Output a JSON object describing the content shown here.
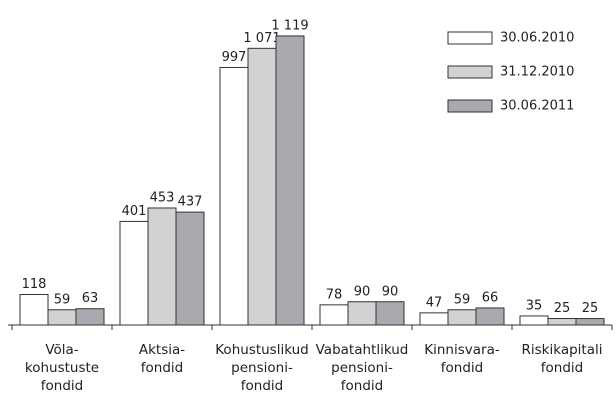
{
  "chart_data": {
    "type": "bar",
    "categories": [
      [
        "Võla-",
        "kohustuste",
        "fondid"
      ],
      [
        "Aktsia-",
        "fondid"
      ],
      [
        "Kohustuslikud",
        "pensioni-",
        "fondid"
      ],
      [
        "Vabatahtlikud",
        "pensioni-",
        "fondid"
      ],
      [
        "Kinnisvara-",
        "fondid"
      ],
      [
        "Riskikapitali",
        "fondid"
      ]
    ],
    "series": [
      {
        "name": "30.06.2010",
        "color": "#ffffff",
        "values": [
          118,
          401,
          997,
          78,
          47,
          35
        ],
        "value_labels": [
          "118",
          "401",
          "997",
          "78",
          "47",
          "35"
        ]
      },
      {
        "name": "31.12.2010",
        "color": "#d2d2d4",
        "values": [
          59,
          453,
          1071,
          90,
          59,
          25
        ],
        "value_labels": [
          "59",
          "453",
          "1 071",
          "90",
          "59",
          "25"
        ]
      },
      {
        "name": "30.06.2011",
        "color": "#a9a9b0",
        "values": [
          63,
          437,
          1119,
          90,
          66,
          25
        ],
        "value_labels": [
          "63",
          "437",
          "1 119",
          "90",
          "66",
          "25"
        ]
      }
    ],
    "ylim": [
      0,
      1200
    ],
    "legend": "top-right"
  }
}
